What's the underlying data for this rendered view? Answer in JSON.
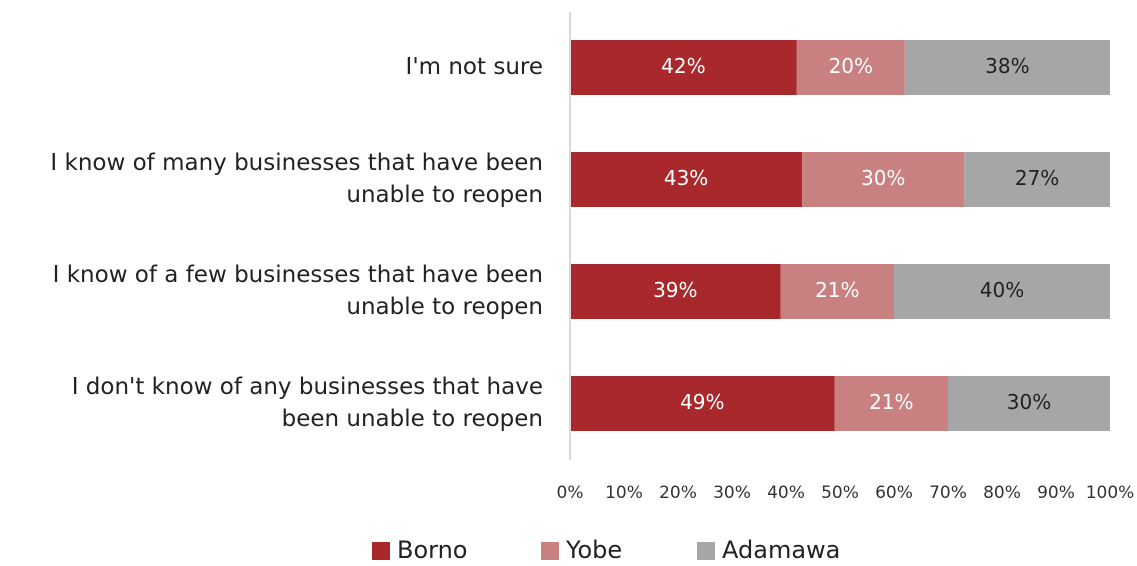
{
  "chart_data": {
    "type": "bar",
    "orientation": "horizontal",
    "stacked": true,
    "percent_stacked": true,
    "categories": [
      [
        "I'm not sure"
      ],
      [
        "I know of many businesses that have been",
        "unable to reopen"
      ],
      [
        "I know of a few businesses that have been",
        "unable to reopen"
      ],
      [
        "I don't know of any businesses that have",
        "been unable to reopen"
      ]
    ],
    "series": [
      {
        "name": "Borno",
        "values": [
          42,
          43,
          39,
          49
        ],
        "color": "#a8282b",
        "label_color": "#ffffff"
      },
      {
        "name": "Yobe",
        "values": [
          20,
          30,
          21,
          21
        ],
        "color": "#c98080",
        "label_color": "#ffffff"
      },
      {
        "name": "Adamawa",
        "values": [
          38,
          27,
          40,
          30
        ],
        "color": "#a6a6a6",
        "label_color": "#222222"
      }
    ],
    "value_suffix": "%",
    "xlim": [
      0,
      100
    ],
    "xticks": [
      0,
      10,
      20,
      30,
      40,
      50,
      60,
      70,
      80,
      90,
      100
    ],
    "tick_suffix": "%",
    "grid": false,
    "legend_position": "bottom",
    "title": "",
    "xlabel": "",
    "ylabel": ""
  }
}
